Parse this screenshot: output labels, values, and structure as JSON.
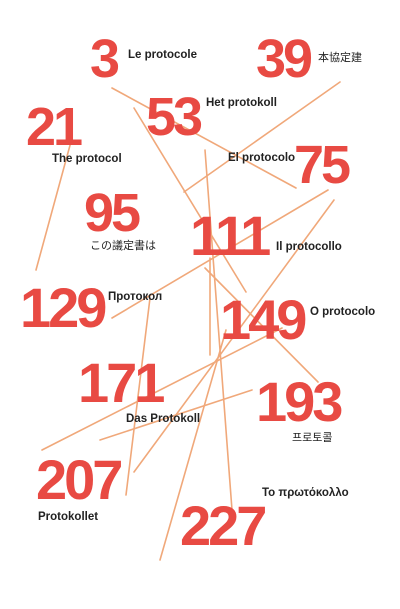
{
  "accent_color": "#e84a43",
  "line_color": "#f0a87a",
  "items": [
    {
      "number": "3",
      "label": "Le protocole"
    },
    {
      "number": "39",
      "label": "本協定建"
    },
    {
      "number": "21",
      "label": "The protocol"
    },
    {
      "number": "53",
      "label": "Het protokoll"
    },
    {
      "number": "75",
      "label": "El protocolo"
    },
    {
      "number": "95",
      "label": "この議定書は"
    },
    {
      "number": "111",
      "label": "Il protocollo"
    },
    {
      "number": "129",
      "label": "Протокол"
    },
    {
      "number": "149",
      "label": "O protocolo"
    },
    {
      "number": "171",
      "label": "Das Protokoll"
    },
    {
      "number": "193",
      "label": "프로토콜"
    },
    {
      "number": "207",
      "label": "Protokollet"
    },
    {
      "number": "227",
      "label": "Το πρωτόκολλο"
    }
  ]
}
